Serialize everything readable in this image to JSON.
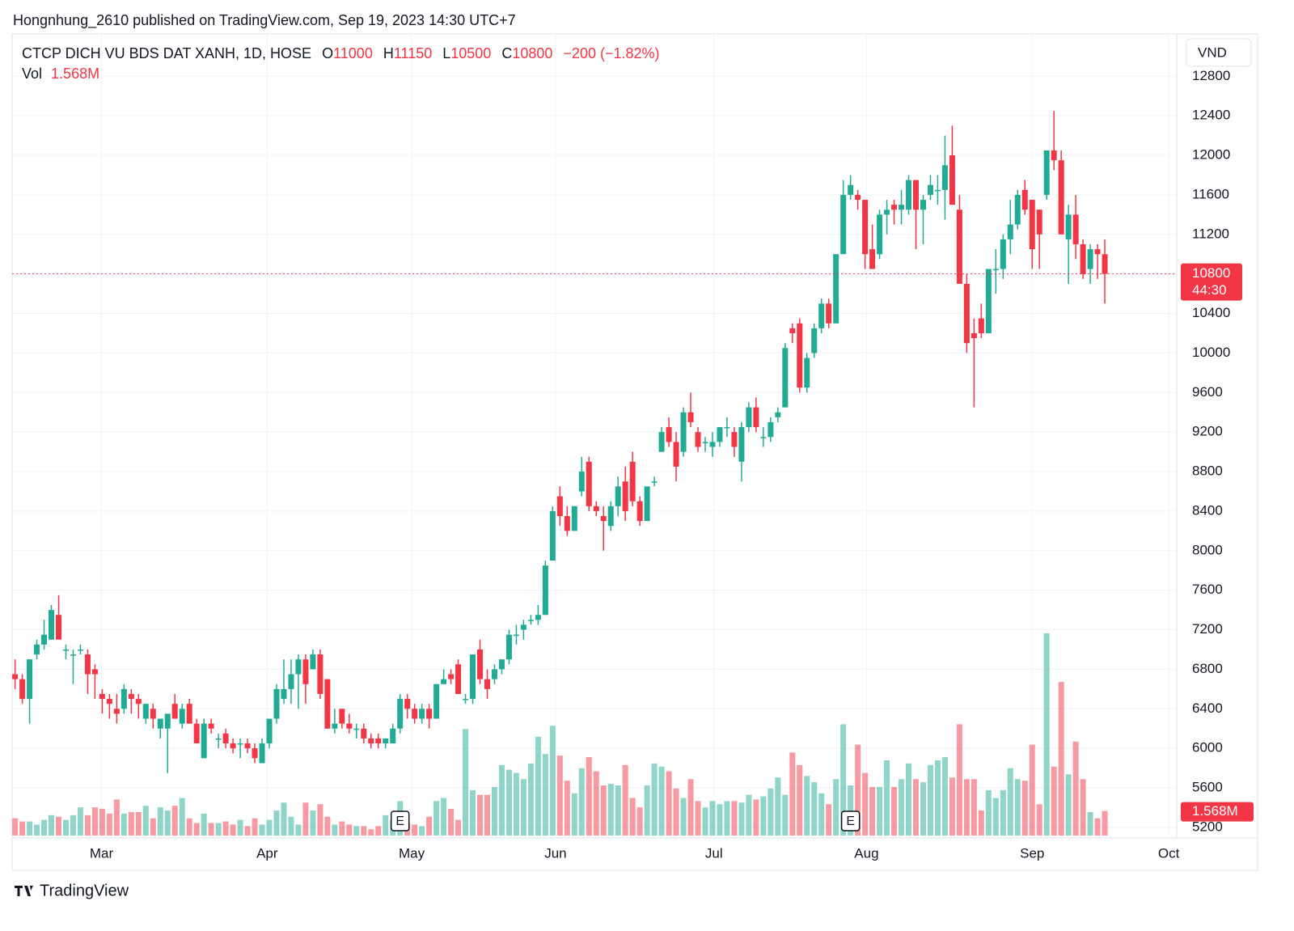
{
  "publisher_line": "Hongnhung_2610 published on TradingView.com, Sep 19, 2023 14:30 UTC+7",
  "brand": "TradingView",
  "chart_data": {
    "type": "candlestick",
    "title": "CTCP DICH VU BDS DAT XANH, 1D, HOSE",
    "legend_labels": {
      "open": "O",
      "high": "H",
      "low": "L",
      "close": "C",
      "volume": "Vol"
    },
    "change_label": "−200 (−1.82%)",
    "currency": "VND",
    "countdown": "44:30",
    "up_color": "#22ab94",
    "down_color": "#f23645",
    "open": [
      6750,
      6700,
      6500,
      6950,
      7050,
      7100,
      7350,
      7000,
      6950,
      7000,
      6950,
      6800,
      6550,
      6500,
      6400,
      6400,
      6550,
      6500,
      6300,
      6400,
      6200,
      6200,
      6450,
      6250,
      6450,
      6250,
      5900,
      6250,
      6100,
      6150,
      6050,
      6050,
      6050,
      6000,
      5850,
      6050,
      6300,
      6500,
      6600,
      6750,
      6900,
      6800,
      6950,
      6700,
      6200,
      6400,
      6250,
      6200,
      6200,
      6100,
      6100,
      6050,
      6050,
      6200,
      6500,
      6400,
      6300,
      6400,
      6300,
      6650,
      6750,
      6850,
      6500,
      6500,
      7000,
      6700,
      6700,
      6800,
      6900,
      7150,
      7200,
      7300,
      7300,
      7350,
      7900,
      8550,
      8350,
      8200,
      8600,
      8900,
      8450,
      8350,
      8250,
      8450,
      8700,
      8900,
      8500,
      8300,
      8700,
      9000,
      9250,
      9100,
      9000,
      9400,
      9200,
      9100,
      9050,
      9100,
      9250,
      9200,
      8900,
      9250,
      9450,
      9150,
      9150,
      9350,
      9450,
      10250,
      10300,
      9650,
      10000,
      10250,
      10500,
      10300,
      11000,
      11600,
      11600,
      11550,
      11050,
      11000,
      11400,
      11500,
      11450,
      11450,
      11750,
      11450,
      11600,
      11650,
      11650,
      12000,
      11450,
      10700,
      10200,
      10350,
      10200,
      10850,
      10850,
      11150,
      11300,
      11650,
      11550,
      11450,
      11600,
      12050,
      11950,
      11150,
      11400,
      11100,
      10850,
      11050,
      11000
    ],
    "high": [
      6900,
      6750,
      6900,
      7100,
      7300,
      7450,
      7550,
      7050,
      7000,
      7050,
      7000,
      6850,
      6600,
      6550,
      6550,
      6650,
      6600,
      6550,
      6450,
      6450,
      6300,
      6350,
      6550,
      6450,
      6500,
      6300,
      6300,
      6300,
      6150,
      6200,
      6100,
      6100,
      6100,
      6050,
      6100,
      6300,
      6650,
      6900,
      6900,
      6950,
      6950,
      7000,
      7000,
      6700,
      6400,
      6400,
      6350,
      6250,
      6250,
      6150,
      6150,
      6100,
      6250,
      6550,
      6550,
      6450,
      6450,
      6450,
      6650,
      6800,
      6800,
      6900,
      6550,
      6950,
      7100,
      6800,
      6850,
      6900,
      7200,
      7250,
      7300,
      7350,
      7450,
      7900,
      8450,
      8650,
      8450,
      8450,
      8950,
      8950,
      8500,
      8450,
      8500,
      8750,
      8850,
      9000,
      8550,
      8650,
      8750,
      9250,
      9350,
      9200,
      9450,
      9600,
      9250,
      9150,
      9200,
      9250,
      9350,
      9250,
      9300,
      9500,
      9550,
      9250,
      9350,
      9450,
      10100,
      10300,
      10350,
      10000,
      10300,
      10550,
      10550,
      11000,
      11750,
      11800,
      11650,
      11550,
      11300,
      11450,
      11550,
      11550,
      11650,
      11800,
      11750,
      11600,
      11800,
      11800,
      12200,
      12300,
      11600,
      10800,
      10350,
      10500,
      10850,
      11050,
      11200,
      11550,
      11650,
      11750,
      11550,
      11450,
      12050,
      12450,
      12050,
      11500,
      11600,
      11150,
      11100,
      11100,
      11150
    ],
    "low": [
      6600,
      6450,
      6250,
      6900,
      7000,
      7100,
      7100,
      6900,
      6650,
      6950,
      6550,
      6500,
      6350,
      6300,
      6250,
      6350,
      6350,
      6300,
      6250,
      6200,
      6100,
      5750,
      6300,
      6200,
      6250,
      6050,
      5900,
      6150,
      6000,
      6000,
      5950,
      5900,
      5950,
      5850,
      5850,
      6000,
      6250,
      6450,
      6450,
      6400,
      6450,
      6800,
      6500,
      6200,
      6150,
      6200,
      6150,
      6100,
      6050,
      6000,
      6000,
      6000,
      6050,
      6150,
      6300,
      6250,
      6250,
      6200,
      6300,
      6650,
      6650,
      6550,
      6450,
      6450,
      6650,
      6500,
      6650,
      6750,
      6850,
      7050,
      7100,
      7250,
      7250,
      7350,
      7900,
      8250,
      8150,
      8200,
      8550,
      8400,
      8350,
      8000,
      8200,
      8350,
      8300,
      8450,
      8250,
      8300,
      8650,
      9000,
      9050,
      8700,
      8950,
      9250,
      9000,
      9000,
      8950,
      9050,
      9150,
      8950,
      8700,
      9200,
      9200,
      9050,
      9100,
      9300,
      9450,
      10100,
      9600,
      9600,
      9950,
      10200,
      10250,
      10300,
      11000,
      11550,
      11450,
      10850,
      10850,
      10950,
      11200,
      11300,
      11300,
      11400,
      11050,
      11100,
      11550,
      11500,
      11350,
      11500,
      10700,
      10000,
      9450,
      10150,
      10200,
      10600,
      10750,
      11000,
      11250,
      11400,
      10850,
      10850,
      11550,
      11850,
      11200,
      10700,
      10950,
      10750,
      10700,
      10750,
      10500
    ],
    "close": [
      6700,
      6500,
      6900,
      7050,
      7150,
      7400,
      7100,
      7000,
      6950,
      7000,
      6750,
      6750,
      6500,
      6450,
      6350,
      6600,
      6500,
      6450,
      6450,
      6300,
      6300,
      6350,
      6300,
      6400,
      6250,
      6050,
      6250,
      6200,
      6100,
      6050,
      6000,
      6050,
      6000,
      5900,
      6050,
      6300,
      6600,
      6600,
      6750,
      6900,
      6650,
      6950,
      6550,
      6200,
      6250,
      6250,
      6200,
      6200,
      6100,
      6050,
      6050,
      6100,
      6200,
      6500,
      6400,
      6300,
      6400,
      6300,
      6650,
      6700,
      6700,
      6550,
      6500,
      6950,
      6700,
      6600,
      6800,
      6900,
      7150,
      7150,
      7250,
      7300,
      7350,
      7850,
      8400,
      8350,
      8200,
      8450,
      8800,
      8450,
      8400,
      8300,
      8450,
      8650,
      8400,
      8500,
      8300,
      8650,
      8700,
      9200,
      9100,
      8850,
      9400,
      9300,
      9050,
      9100,
      9100,
      9250,
      9250,
      9050,
      9250,
      9450,
      9250,
      9150,
      9300,
      9400,
      10050,
      10200,
      9650,
      9950,
      10250,
      10500,
      10300,
      11000,
      11600,
      11700,
      11550,
      11000,
      10850,
      11400,
      11450,
      11450,
      11500,
      11750,
      11450,
      11550,
      11700,
      11650,
      11900,
      11500,
      10700,
      10100,
      10150,
      10200,
      10850,
      10850,
      11150,
      11300,
      11600,
      11450,
      11050,
      11200,
      12050,
      11950,
      11200,
      11400,
      11100,
      10800,
      11050,
      11000,
      10800
    ],
    "volume": [
      1.1,
      0.9,
      0.9,
      0.7,
      1.0,
      1.3,
      1.2,
      1.0,
      1.3,
      1.8,
      1.3,
      1.8,
      1.7,
      1.4,
      2.3,
      1.4,
      1.5,
      1.5,
      1.9,
      1.1,
      1.8,
      1.6,
      1.9,
      2.4,
      1.1,
      0.8,
      1.4,
      0.8,
      0.8,
      0.9,
      0.7,
      1.0,
      0.6,
      1.1,
      0.7,
      1.0,
      1.6,
      2.1,
      1.2,
      0.7,
      2.1,
      1.6,
      2.0,
      1.2,
      0.7,
      0.9,
      0.7,
      0.6,
      0.6,
      0.4,
      0.6,
      1.3,
      1.0,
      2.2,
      0.8,
      0.7,
      0.6,
      1.2,
      2.2,
      2.4,
      1.7,
      1.0,
      6.8,
      2.9,
      2.6,
      2.6,
      3.1,
      4.5,
      4.2,
      4.0,
      3.6,
      4.6,
      6.3,
      5.2,
      7.0,
      5.1,
      3.5,
      2.7,
      4.3,
      5.0,
      4.1,
      3.2,
      3.3,
      3.2,
      4.5,
      2.4,
      1.8,
      3.2,
      4.6,
      4.4,
      4.1,
      3.0,
      2.4,
      3.6,
      2.2,
      1.8,
      2.2,
      2.0,
      2.2,
      2.2,
      2.1,
      2.6,
      2.3,
      2.5,
      3.0,
      3.7,
      2.6,
      5.3,
      4.5,
      3.8,
      3.4,
      2.7,
      2.0,
      3.6,
      7.1,
      3.2,
      5.8,
      4.0,
      3.1,
      3.1,
      4.8,
      3.1,
      3.6,
      4.6,
      3.6,
      3.4,
      4.5,
      4.8,
      5.0,
      3.7,
      7.1,
      3.6,
      3.6,
      1.6,
      2.9,
      2.4,
      2.9,
      4.3,
      3.6,
      3.5,
      5.8,
      2.0,
      12.9,
      4.4,
      9.8,
      3.9,
      6.0,
      3.6,
      1.5,
      1.1,
      1.568
    ],
    "volume_labels": {
      "150": "1.568M"
    },
    "events": [
      {
        "label": "E",
        "x": 53
      },
      {
        "label": "E",
        "x": 115
      }
    ],
    "ylim": [
      5093,
      13228
    ],
    "yticks": [
      5200,
      5600,
      6000,
      6400,
      6800,
      7200,
      7600,
      8000,
      8400,
      8800,
      9200,
      9600,
      10000,
      10400,
      10800,
      11200,
      11600,
      12000,
      12400,
      12800
    ],
    "xlim": [
      -0.4,
      159.9
    ],
    "xticks": [
      {
        "value": 11.9,
        "label": "Mar"
      },
      {
        "value": 34.7,
        "label": "Apr"
      },
      {
        "value": 54.6,
        "label": "May"
      },
      {
        "value": 74.4,
        "label": "Jun"
      },
      {
        "value": 96.2,
        "label": "Jul"
      },
      {
        "value": 117.2,
        "label": "Aug"
      },
      {
        "value": 140.0,
        "label": "Sep"
      },
      {
        "value": 158.8,
        "label": "Oct"
      }
    ],
    "grid": true
  }
}
